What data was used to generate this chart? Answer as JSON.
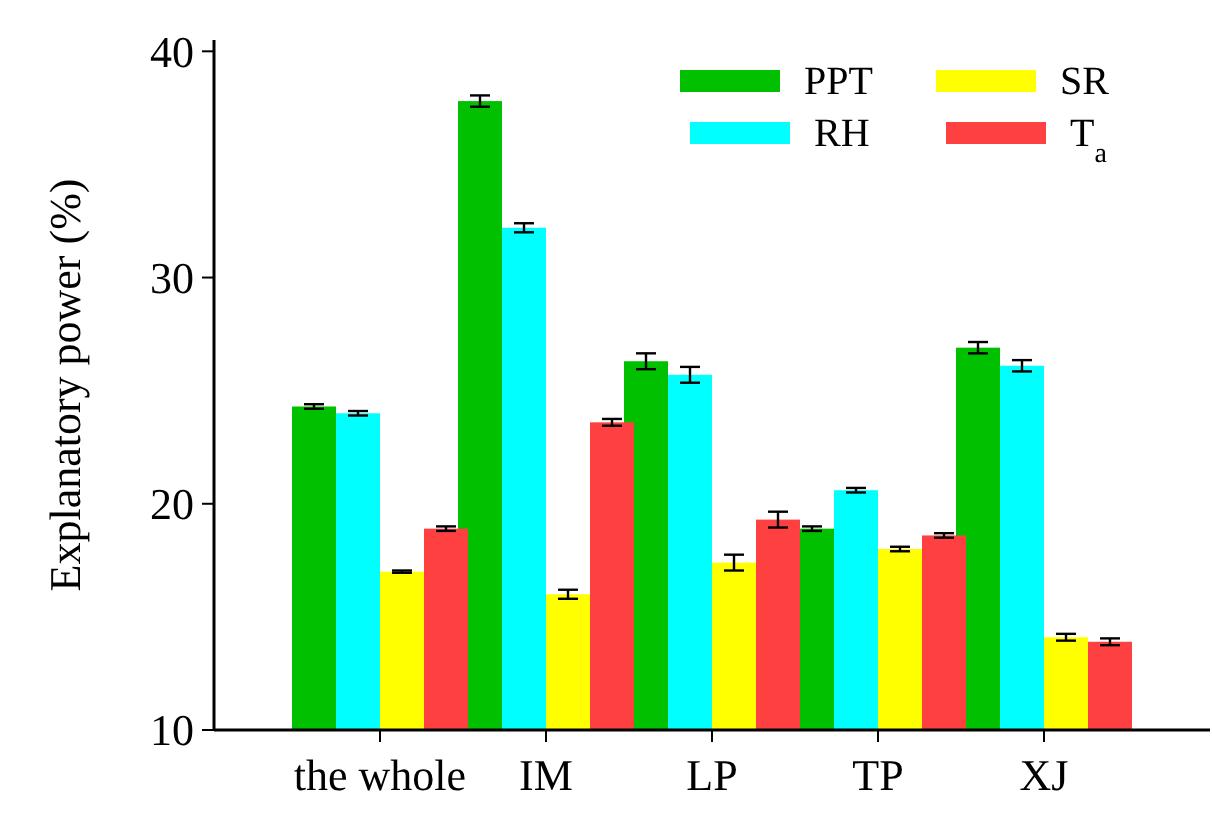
{
  "chart_data": {
    "type": "bar",
    "ylabel": "Explanatory power (%)",
    "categories": [
      "the whole",
      "IM",
      "LP",
      "TP",
      "XJ"
    ],
    "series": [
      {
        "name": "PPT",
        "color": "#00c000",
        "values": [
          24.3,
          37.8,
          26.3,
          18.9,
          26.9
        ],
        "errors": [
          0.1,
          0.25,
          0.35,
          0.1,
          0.25
        ]
      },
      {
        "name": "RH",
        "color": "#00ffff",
        "values": [
          24.0,
          32.2,
          25.7,
          20.6,
          26.1
        ],
        "errors": [
          0.1,
          0.2,
          0.35,
          0.1,
          0.25
        ]
      },
      {
        "name": "SR",
        "color": "#ffff00",
        "values": [
          17.0,
          16.0,
          17.4,
          18.0,
          14.1
        ],
        "errors": [
          0.05,
          0.2,
          0.35,
          0.1,
          0.15
        ]
      },
      {
        "name": "T$_{a}$",
        "color": "#ff4040",
        "values": [
          18.9,
          23.6,
          19.3,
          18.6,
          13.9
        ],
        "errors": [
          0.1,
          0.15,
          0.35,
          0.1,
          0.15
        ]
      }
    ],
    "ylim": [
      10,
      40.5
    ],
    "yticks": [
      10,
      20,
      30,
      40
    ],
    "grid": false,
    "legend": "top right"
  }
}
